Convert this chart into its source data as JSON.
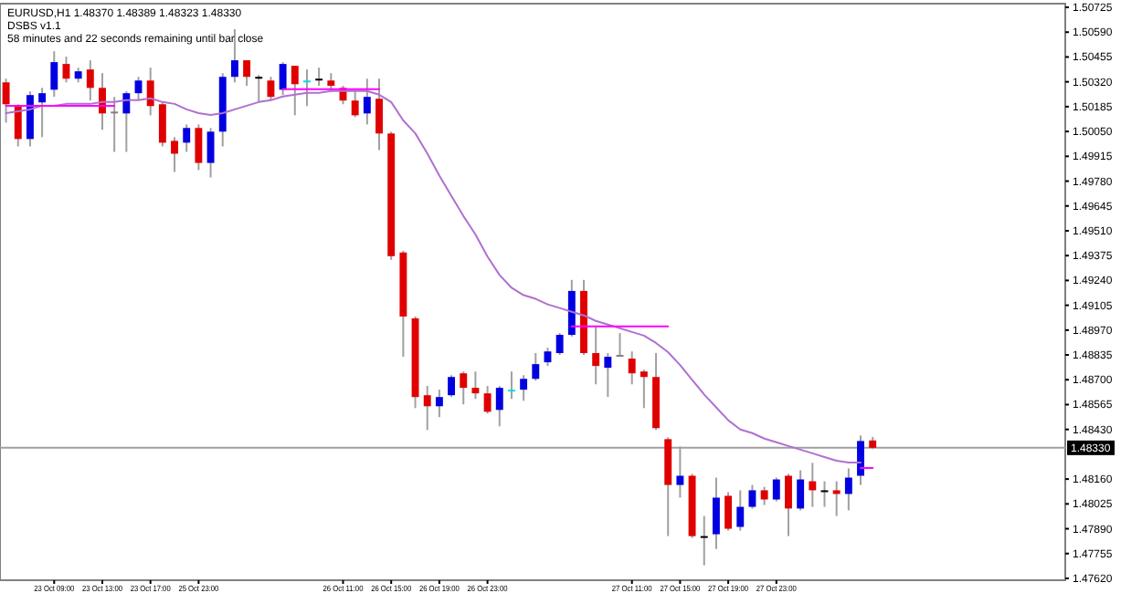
{
  "chart_data": {
    "type": "candlestick",
    "title": "EURUSD,H1  1.48370 1.48389 1.48323 1.48330",
    "subtitle": "DSBS v1.1",
    "annotations": [
      "58 minutes and 22 seconds remaining until bar close"
    ],
    "categories": [
      null,
      null,
      null,
      null,
      "23 Oct 09:00",
      null,
      null,
      null,
      "23 Oct 13:00",
      null,
      null,
      null,
      "23 Oct 17:00",
      null,
      null,
      null,
      "25 Oct 23:00",
      null,
      null,
      null,
      null,
      null,
      null,
      null,
      null,
      null,
      null,
      null,
      "26 Oct 11:00",
      null,
      null,
      null,
      "26 Oct 15:00",
      null,
      null,
      null,
      "26 Oct 19:00",
      null,
      null,
      null,
      "26 Oct 23:00",
      null,
      null,
      null,
      null,
      null,
      null,
      null,
      null,
      null,
      null,
      null,
      "27 Oct 11:00",
      null,
      null,
      null,
      "27 Oct 15:00",
      null,
      null,
      null,
      "27 Oct 19:00",
      null,
      null,
      null,
      "27 Oct 23:00",
      null,
      null,
      null,
      null,
      null,
      null,
      null,
      null
    ],
    "ohlc": [
      [
        1.50317,
        1.50337,
        1.50098,
        1.50198
      ],
      [
        1.50188,
        1.50198,
        1.49969,
        1.50009
      ],
      [
        1.50009,
        1.50268,
        1.49969,
        1.50248
      ],
      [
        1.50208,
        1.50287,
        1.50019,
        1.50258
      ],
      [
        1.50277,
        1.50486,
        1.50238,
        1.50427
      ],
      [
        1.50417,
        1.50457,
        1.50317,
        1.50337
      ],
      [
        1.50337,
        1.50397,
        1.50317,
        1.50377
      ],
      [
        1.50387,
        1.50437,
        1.50218,
        1.50287
      ],
      [
        1.50287,
        1.50367,
        1.50059,
        1.50148
      ],
      [
        1.50158,
        1.50238,
        1.49939,
        1.50158
      ],
      [
        1.50148,
        1.50268,
        1.49939,
        1.50258
      ],
      [
        1.50258,
        1.50347,
        1.50218,
        1.50327
      ],
      [
        1.50327,
        1.50397,
        1.50138,
        1.50188
      ],
      [
        1.50198,
        1.50208,
        1.49969,
        1.49989
      ],
      [
        1.49999,
        1.50019,
        1.4983,
        1.49929
      ],
      [
        1.49989,
        1.50088,
        1.49939,
        1.50069
      ],
      [
        1.50069,
        1.50088,
        1.4984,
        1.49879
      ],
      [
        1.49879,
        1.50069,
        1.498,
        1.50049
      ],
      [
        1.50049,
        1.50367,
        1.49969,
        1.50347
      ],
      [
        1.50347,
        1.50606,
        1.50317,
        1.50437
      ],
      [
        1.50437,
        1.50437,
        1.50298,
        1.50347
      ],
      [
        1.50347,
        1.50357,
        1.50208,
        1.50347
      ],
      [
        1.50327,
        1.50347,
        1.50218,
        1.50238
      ],
      [
        1.50277,
        1.50427,
        1.50248,
        1.50417
      ],
      [
        1.50407,
        1.50407,
        1.50138,
        1.50307
      ],
      [
        1.50327,
        1.50387,
        1.50188,
        1.50327
      ],
      [
        1.50337,
        1.50397,
        1.50298,
        1.50337
      ],
      [
        1.50327,
        1.50367,
        1.50268,
        1.50298
      ],
      [
        1.50287,
        1.50298,
        1.50198,
        1.50218
      ],
      [
        1.50218,
        1.50268,
        1.50128,
        1.50138
      ],
      [
        1.50148,
        1.50337,
        1.50088,
        1.50238
      ],
      [
        1.50228,
        1.50337,
        1.49949,
        1.50039
      ],
      [
        1.50039,
        1.50049,
        1.49352,
        1.49372
      ],
      [
        1.49392,
        1.49402,
        1.48825,
        1.49044
      ],
      [
        1.49034,
        1.49044,
        1.48546,
        1.48606
      ],
      [
        1.48616,
        1.48666,
        1.48427,
        1.48556
      ],
      [
        1.48556,
        1.48646,
        1.48497,
        1.48606
      ],
      [
        1.48616,
        1.48725,
        1.48606,
        1.48715
      ],
      [
        1.48735,
        1.48745,
        1.48566,
        1.48656
      ],
      [
        1.48656,
        1.48745,
        1.48596,
        1.48626
      ],
      [
        1.48626,
        1.48666,
        1.48516,
        1.48526
      ],
      [
        1.48536,
        1.48666,
        1.48447,
        1.48656
      ],
      [
        1.48646,
        1.48745,
        1.48596,
        1.48646
      ],
      [
        1.48646,
        1.48725,
        1.48586,
        1.48705
      ],
      [
        1.48705,
        1.48845,
        1.48695,
        1.48785
      ],
      [
        1.48795,
        1.48874,
        1.48775,
        1.48854
      ],
      [
        1.48845,
        1.48954,
        1.48835,
        1.48944
      ],
      [
        1.48944,
        1.49243,
        1.48935,
        1.49183
      ],
      [
        1.49183,
        1.49243,
        1.48835,
        1.48845
      ],
      [
        1.48845,
        1.48994,
        1.48675,
        1.48775
      ],
      [
        1.48765,
        1.48845,
        1.48606,
        1.48825
      ],
      [
        1.48835,
        1.48954,
        1.48825,
        1.48835
      ],
      [
        1.48815,
        1.48854,
        1.48675,
        1.48735
      ],
      [
        1.48745,
        1.48755,
        1.48546,
        1.48715
      ],
      [
        1.48715,
        1.48845,
        1.48427,
        1.48437
      ],
      [
        1.48377,
        1.48387,
        1.4785,
        1.48128
      ],
      [
        1.48128,
        1.48337,
        1.48059,
        1.48178
      ],
      [
        1.48178,
        1.48188,
        1.4784,
        1.4785
      ],
      [
        1.4785,
        1.47959,
        1.47691,
        1.4785
      ],
      [
        1.4786,
        1.48168,
        1.4778,
        1.48059
      ],
      [
        1.48069,
        1.48089,
        1.4788,
        1.4789
      ],
      [
        1.479,
        1.48099,
        1.4788,
        1.48009
      ],
      [
        1.48009,
        1.48128,
        1.47999,
        1.48099
      ],
      [
        1.48099,
        1.48118,
        1.48019,
        1.48049
      ],
      [
        1.48049,
        1.48168,
        1.48039,
        1.48158
      ],
      [
        1.48178,
        1.48188,
        1.4785,
        1.48
      ],
      [
        1.48,
        1.48208,
        1.4799,
        1.48158
      ],
      [
        1.48148,
        1.48248,
        1.48009,
        1.48099
      ],
      [
        1.48099,
        1.48148,
        1.48009,
        1.48099
      ],
      [
        1.48099,
        1.48148,
        1.47959,
        1.48079
      ],
      [
        1.48079,
        1.48218,
        1.4799,
        1.48168
      ],
      [
        1.48178,
        1.48397,
        1.48128,
        1.48367
      ],
      [
        1.4837,
        1.48389,
        1.48323,
        1.4833
      ]
    ],
    "colors": [
      "#e00000",
      "#e00000",
      "#0000e0",
      "#0000e0",
      "#0000e0",
      "#e00000",
      "#0000e0",
      "#e00000",
      "#e00000",
      "#808080",
      "#0000e0",
      "#0000e0",
      "#e00000",
      "#e00000",
      "#e00000",
      "#0000e0",
      "#e00000",
      "#0000e0",
      "#0000e0",
      "#0000e0",
      "#e00000",
      "#000000",
      "#e00000",
      "#0000e0",
      "#e00000",
      "#00e0e0",
      "#000000",
      "#e00000",
      "#e00000",
      "#e00000",
      "#0000e0",
      "#e00000",
      "#e00000",
      "#e00000",
      "#e00000",
      "#e00000",
      "#0000e0",
      "#0000e0",
      "#e00000",
      "#e00000",
      "#e00000",
      "#0000e0",
      "#00e0e0",
      "#0000e0",
      "#0000e0",
      "#0000e0",
      "#0000e0",
      "#0000e0",
      "#e00000",
      "#e00000",
      "#0000e0",
      "#808080",
      "#e00000",
      "#e00000",
      "#e00000",
      "#e00000",
      "#0000e0",
      "#e00000",
      "#000000",
      "#0000e0",
      "#e00000",
      "#0000e0",
      "#0000e0",
      "#e00000",
      "#0000e0",
      "#e00000",
      "#0000e0",
      "#e00000",
      "#000000",
      "#e00000",
      "#0000e0",
      "#0000e0",
      "#e00000"
    ],
    "series": [
      {
        "type": "line",
        "color": "#b070d0",
        "values": [
          1.5015,
          1.5016,
          1.5017,
          1.5019,
          1.5019,
          1.502,
          1.502,
          1.502,
          1.5021,
          1.5021,
          1.5022,
          1.5022,
          1.5023,
          1.5021,
          1.502,
          1.5017,
          1.5015,
          1.5014,
          1.5015,
          1.5017,
          1.5019,
          1.5021,
          1.5022,
          1.5024,
          1.5025,
          1.5026,
          1.5026,
          1.5027,
          1.5027,
          1.5027,
          1.5027,
          1.5025,
          1.5021,
          1.5011,
          1.5004,
          1.4993,
          1.4981,
          1.497,
          1.4959,
          1.4949,
          1.4937,
          1.4927,
          1.492,
          1.4916,
          1.4914,
          1.4911,
          1.4909,
          1.4907,
          1.4905,
          1.4902,
          1.49,
          1.4898,
          1.4896,
          1.4894,
          1.489,
          1.4885,
          1.4878,
          1.487,
          1.4862,
          1.4855,
          1.4848,
          1.4843,
          1.4841,
          1.4838,
          1.4836,
          1.4834,
          1.4832,
          1.483,
          1.4828,
          1.4826,
          1.4825,
          1.4825,
          null
        ]
      },
      {
        "type": "line",
        "color": "#ff00ff",
        "values": [
          1.5019,
          1.5019,
          1.5019,
          1.5019,
          1.5019,
          1.5019,
          1.5019,
          1.5019,
          1.5019,
          1.5019,
          null,
          null,
          null,
          null,
          null,
          null,
          null,
          null,
          null,
          null,
          null,
          null,
          null,
          null,
          null,
          null,
          null,
          null,
          null,
          null,
          null,
          null,
          null,
          null,
          null,
          null,
          null,
          null,
          null,
          null,
          null,
          null,
          null,
          null,
          null,
          null,
          null,
          null,
          null,
          null,
          null,
          null,
          null,
          null,
          null,
          null,
          null,
          null,
          null,
          null,
          null,
          null,
          null,
          null,
          null,
          null,
          null,
          null,
          null,
          null,
          null,
          null,
          null
        ]
      },
      {
        "type": "line",
        "color": "#ff00ff",
        "values": [
          null,
          null,
          null,
          null,
          null,
          null,
          null,
          null,
          null,
          null,
          null,
          null,
          null,
          null,
          null,
          null,
          null,
          null,
          null,
          null,
          null,
          null,
          null,
          1.5028,
          1.5028,
          1.5028,
          1.5028,
          1.5028,
          1.5028,
          1.5028,
          1.5028,
          1.5028,
          null,
          null,
          null,
          null,
          null,
          null,
          null,
          null,
          null,
          null,
          null,
          null,
          null,
          null,
          null,
          null,
          null,
          null,
          null,
          null,
          null,
          null,
          null,
          null,
          null,
          null,
          null,
          null,
          null,
          null,
          null,
          null,
          null,
          null,
          null,
          null,
          null,
          null,
          null,
          null,
          null
        ]
      },
      {
        "type": "line",
        "color": "#ff00ff",
        "values": [
          null,
          null,
          null,
          null,
          null,
          null,
          null,
          null,
          null,
          null,
          null,
          null,
          null,
          null,
          null,
          null,
          null,
          null,
          null,
          null,
          null,
          null,
          null,
          null,
          null,
          null,
          null,
          null,
          null,
          null,
          null,
          null,
          null,
          null,
          null,
          null,
          null,
          null,
          null,
          null,
          null,
          null,
          null,
          null,
          null,
          null,
          null,
          1.4899,
          1.4899,
          1.4899,
          1.4899,
          1.4899,
          1.4899,
          1.4899,
          1.4899,
          1.4899,
          null,
          null,
          null,
          null,
          null,
          null,
          null,
          null,
          null,
          null,
          null,
          null,
          null,
          null,
          null,
          null,
          null
        ]
      },
      {
        "type": "line",
        "color": "#ff00ff",
        "values": [
          null,
          null,
          null,
          null,
          null,
          null,
          null,
          null,
          null,
          null,
          null,
          null,
          null,
          null,
          null,
          null,
          null,
          null,
          null,
          null,
          null,
          null,
          null,
          null,
          null,
          null,
          null,
          null,
          null,
          null,
          null,
          null,
          null,
          null,
          null,
          null,
          null,
          null,
          null,
          null,
          null,
          null,
          null,
          null,
          null,
          null,
          null,
          null,
          null,
          null,
          null,
          null,
          null,
          null,
          null,
          null,
          null,
          null,
          null,
          null,
          null,
          null,
          null,
          null,
          null,
          null,
          null,
          null,
          null,
          null,
          null,
          1.4822,
          1.4822
        ]
      }
    ],
    "ylim": [
      1.4761,
      1.50745
    ],
    "yticks": [
      {
        "value": 1.4762,
        "label": "1.47620"
      },
      {
        "value": 1.47755,
        "label": "1.47755"
      },
      {
        "value": 1.4789,
        "label": "1.47890"
      },
      {
        "value": 1.48025,
        "label": "1.48025"
      },
      {
        "value": 1.4816,
        "label": "1.48160"
      },
      {
        "value": 1.4843,
        "label": "1.48430"
      },
      {
        "value": 1.48565,
        "label": "1.48565"
      },
      {
        "value": 1.487,
        "label": "1.48700"
      },
      {
        "value": 1.48835,
        "label": "1.48835"
      },
      {
        "value": 1.4897,
        "label": "1.48970"
      },
      {
        "value": 1.49105,
        "label": "1.49105"
      },
      {
        "value": 1.4924,
        "label": "1.49240"
      },
      {
        "value": 1.49375,
        "label": "1.49375"
      },
      {
        "value": 1.4951,
        "label": "1.49510"
      },
      {
        "value": 1.49645,
        "label": "1.49645"
      },
      {
        "value": 1.4978,
        "label": "1.49780"
      },
      {
        "value": 1.49915,
        "label": "1.49915"
      },
      {
        "value": 1.5005,
        "label": "1.50050"
      },
      {
        "value": 1.50185,
        "label": "1.50185"
      },
      {
        "value": 1.5032,
        "label": "1.50320"
      },
      {
        "value": 1.50455,
        "label": "1.50455"
      },
      {
        "value": 1.5059,
        "label": "1.50590"
      },
      {
        "value": 1.50725,
        "label": "1.50725"
      }
    ],
    "ref_lines": [
      {
        "axis": "y",
        "value": 1.4833,
        "label": "1.48330",
        "color": "#a0a0a0"
      }
    ]
  }
}
